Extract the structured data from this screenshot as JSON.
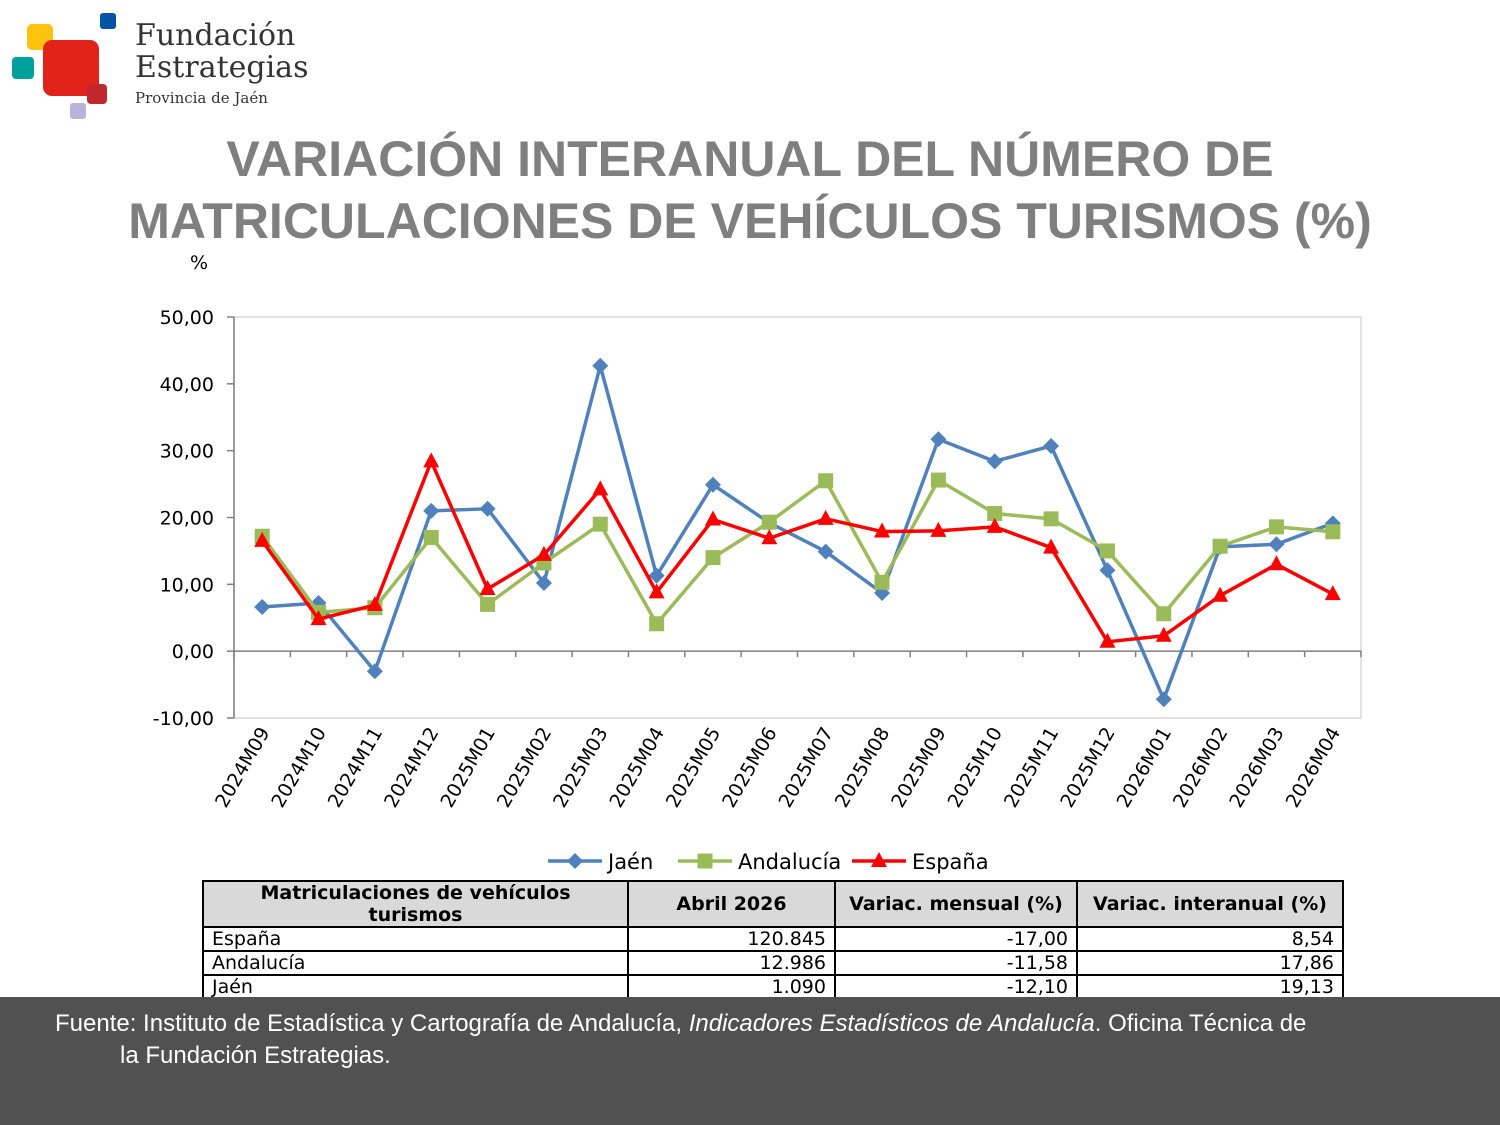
{
  "logo": {
    "line1": "Fundación",
    "line2": "Estrategias",
    "line3": "Provincia de Jaén"
  },
  "title": {
    "line1": "VARIACIÓN INTERANUAL DEL NÚMERO DE",
    "line2": "MATRICULACIONES DE VEHÍCULOS TURISMOS (%)"
  },
  "chart_data": {
    "type": "line",
    "ylabel": "%",
    "ylim": [
      -10,
      50
    ],
    "yticks": [
      "50,00",
      "40,00",
      "30,00",
      "20,00",
      "10,00",
      "0,00",
      "-10,00"
    ],
    "grid": false,
    "legend_position": "bottom",
    "categories": [
      "2024M09",
      "2024M10",
      "2024M11",
      "2024M12",
      "2025M01",
      "2025M02",
      "2025M03",
      "2025M04",
      "2025M05",
      "2025M06",
      "2025M07",
      "2025M08",
      "2025M09",
      "2025M10",
      "2025M11",
      "2025M12",
      "2026M01",
      "2026M02",
      "2026M03",
      "2026M04"
    ],
    "series": [
      {
        "name": "Jaén",
        "color": "#4f81bd",
        "marker": "diamond",
        "values": [
          6.6,
          7.2,
          -3.0,
          21.0,
          21.3,
          10.2,
          42.7,
          11.3,
          24.9,
          19.2,
          14.9,
          8.7,
          31.7,
          28.4,
          30.7,
          12.1,
          -7.2,
          15.6,
          16.0,
          19.13
        ]
      },
      {
        "name": "Andalucía",
        "color": "#9bbb59",
        "marker": "square",
        "values": [
          17.2,
          5.8,
          6.5,
          17.0,
          7.0,
          13.2,
          19.0,
          4.1,
          14.0,
          19.3,
          25.5,
          10.3,
          25.6,
          20.6,
          19.8,
          15.0,
          5.6,
          15.7,
          18.6,
          17.86
        ]
      },
      {
        "name": "España",
        "color": "#ff0000",
        "marker": "triangle",
        "values": [
          16.5,
          4.8,
          6.9,
          28.4,
          9.3,
          14.4,
          24.2,
          8.8,
          19.7,
          16.9,
          19.8,
          17.9,
          18.0,
          18.6,
          15.5,
          1.4,
          2.3,
          8.3,
          13.0,
          8.54
        ]
      }
    ]
  },
  "table": {
    "headers": [
      "Matriculaciones de vehículos turismos",
      "Abril 2026",
      "Variac. mensual (%)",
      "Variac. interanual (%)"
    ],
    "rows": [
      [
        "España",
        "120.845",
        "-17,00",
        "8,54"
      ],
      [
        "Andalucía",
        "12.986",
        "-11,58",
        "17,86"
      ],
      [
        "Jaén",
        "1.090",
        "-12,10",
        "19,13"
      ]
    ]
  },
  "footer": {
    "prefix": "Fuente: Instituto de Estadística y Cartografía de Andalucía, ",
    "italic": "Indicadores Estadísticos de Andalucía",
    "suffix": ". Oficina Técnica de",
    "line2": "la Fundación Estrategias."
  }
}
